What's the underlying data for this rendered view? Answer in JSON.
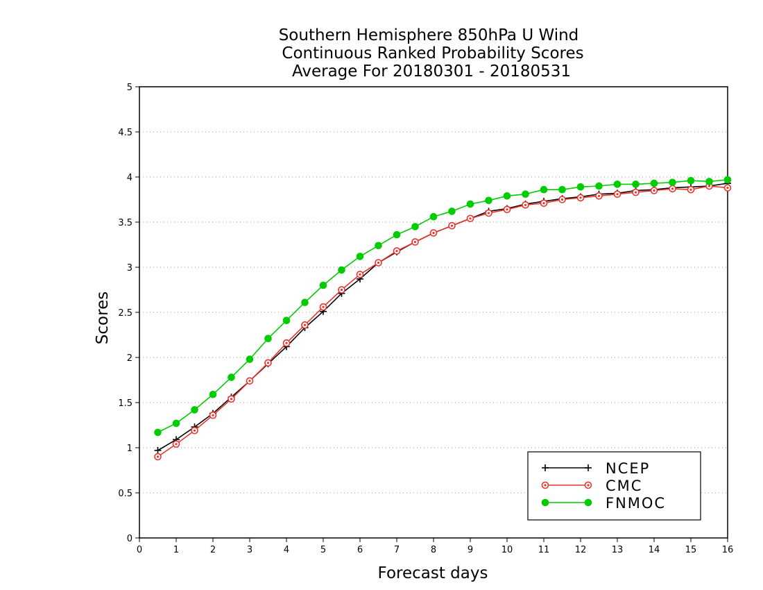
{
  "chart_data": {
    "type": "line",
    "title": [
      "Southern Hemisphere 850hPa U Wind",
      "Continuous Ranked Probability Scores",
      "Average For 20180301 - 20180531"
    ],
    "xlabel": "Forecast days",
    "ylabel": "Scores",
    "xlim": [
      0,
      16
    ],
    "ylim": [
      0,
      5
    ],
    "x_ticks": [
      "0",
      "1",
      "2",
      "3",
      "4",
      "5",
      "6",
      "7",
      "8",
      "9",
      "10",
      "11",
      "12",
      "13",
      "14",
      "15",
      "16"
    ],
    "y_ticks": [
      "0",
      "0.5",
      "1",
      "1.5",
      "2",
      "2.5",
      "3",
      "3.5",
      "4",
      "4.5",
      "5"
    ],
    "grid": "horizontal dotted",
    "legend_position": "bottom-right",
    "x": [
      0.5,
      1,
      1.5,
      2,
      2.5,
      3,
      3.5,
      4,
      4.5,
      5,
      5.5,
      6,
      6.5,
      7,
      7.5,
      8,
      8.5,
      9,
      9.5,
      10,
      10.5,
      11,
      11.5,
      12,
      12.5,
      13,
      13.5,
      14,
      14.5,
      15,
      15.5,
      16
    ],
    "series": [
      {
        "name": "NCEP",
        "color": "#000000",
        "marker": "plus",
        "values": [
          0.97,
          1.09,
          1.23,
          1.38,
          1.56,
          1.74,
          1.93,
          2.12,
          2.33,
          2.51,
          2.71,
          2.87,
          3.05,
          3.17,
          3.28,
          3.38,
          3.46,
          3.54,
          3.62,
          3.65,
          3.7,
          3.73,
          3.76,
          3.78,
          3.81,
          3.82,
          3.85,
          3.86,
          3.88,
          3.89,
          3.9,
          3.93
        ]
      },
      {
        "name": "CMC",
        "color": "#e8342e",
        "marker": "open-circle",
        "values": [
          0.9,
          1.04,
          1.19,
          1.36,
          1.54,
          1.74,
          1.94,
          2.16,
          2.36,
          2.56,
          2.75,
          2.92,
          3.05,
          3.18,
          3.28,
          3.38,
          3.46,
          3.54,
          3.6,
          3.64,
          3.69,
          3.71,
          3.75,
          3.77,
          3.79,
          3.81,
          3.83,
          3.85,
          3.87,
          3.86,
          3.9,
          3.88
        ]
      },
      {
        "name": "FNMOC",
        "color": "#00cc00",
        "marker": "filled-circle",
        "values": [
          1.17,
          1.27,
          1.42,
          1.59,
          1.78,
          1.98,
          2.21,
          2.41,
          2.61,
          2.8,
          2.97,
          3.12,
          3.24,
          3.36,
          3.45,
          3.56,
          3.62,
          3.7,
          3.74,
          3.79,
          3.81,
          3.86,
          3.86,
          3.89,
          3.9,
          3.92,
          3.92,
          3.93,
          3.94,
          3.96,
          3.95,
          3.97
        ]
      }
    ]
  }
}
